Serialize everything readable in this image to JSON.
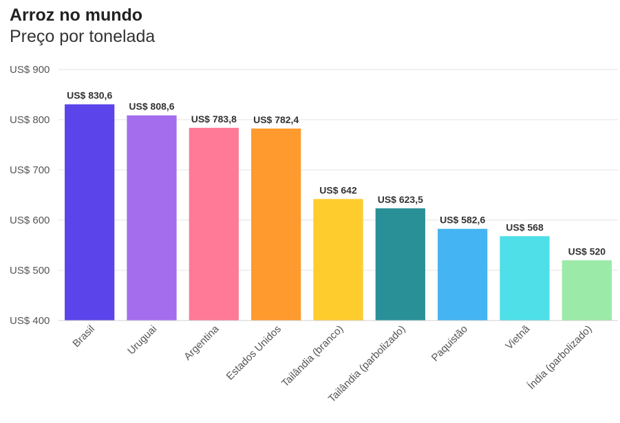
{
  "chart_data": {
    "type": "bar",
    "title": "Arroz no mundo",
    "subtitle": "Preço por tonelada",
    "xlabel": "",
    "ylabel": "",
    "ylim": [
      400,
      900
    ],
    "yticks": [
      400,
      500,
      600,
      700,
      800,
      900
    ],
    "ytick_labels": [
      "US$ 400",
      "US$ 500",
      "US$ 600",
      "US$ 700",
      "US$ 800",
      "US$ 900"
    ],
    "grid": true,
    "categories": [
      "Brasil",
      "Uruguai",
      "Argentina",
      "Estados Unidos",
      "Tailândia (branco)",
      "Tailândia (parbolizado)",
      "Paquistão",
      "Vietnã",
      "Índia (parbolizado)"
    ],
    "values": [
      830.6,
      808.6,
      783.8,
      782.4,
      642,
      623.5,
      582.6,
      568,
      520
    ],
    "data_labels": [
      "US$ 830,6",
      "US$ 808,6",
      "US$ 783,8",
      "US$ 782,4",
      "US$ 642",
      "US$ 623,5",
      "US$ 582,6",
      "US$ 568",
      "US$ 520"
    ],
    "colors": [
      "#5b45ea",
      "#a46ded",
      "#ff7a96",
      "#ff9a2e",
      "#ffcc2e",
      "#2a9098",
      "#45b4f2",
      "#4fdfe8",
      "#9ceaa7"
    ]
  }
}
